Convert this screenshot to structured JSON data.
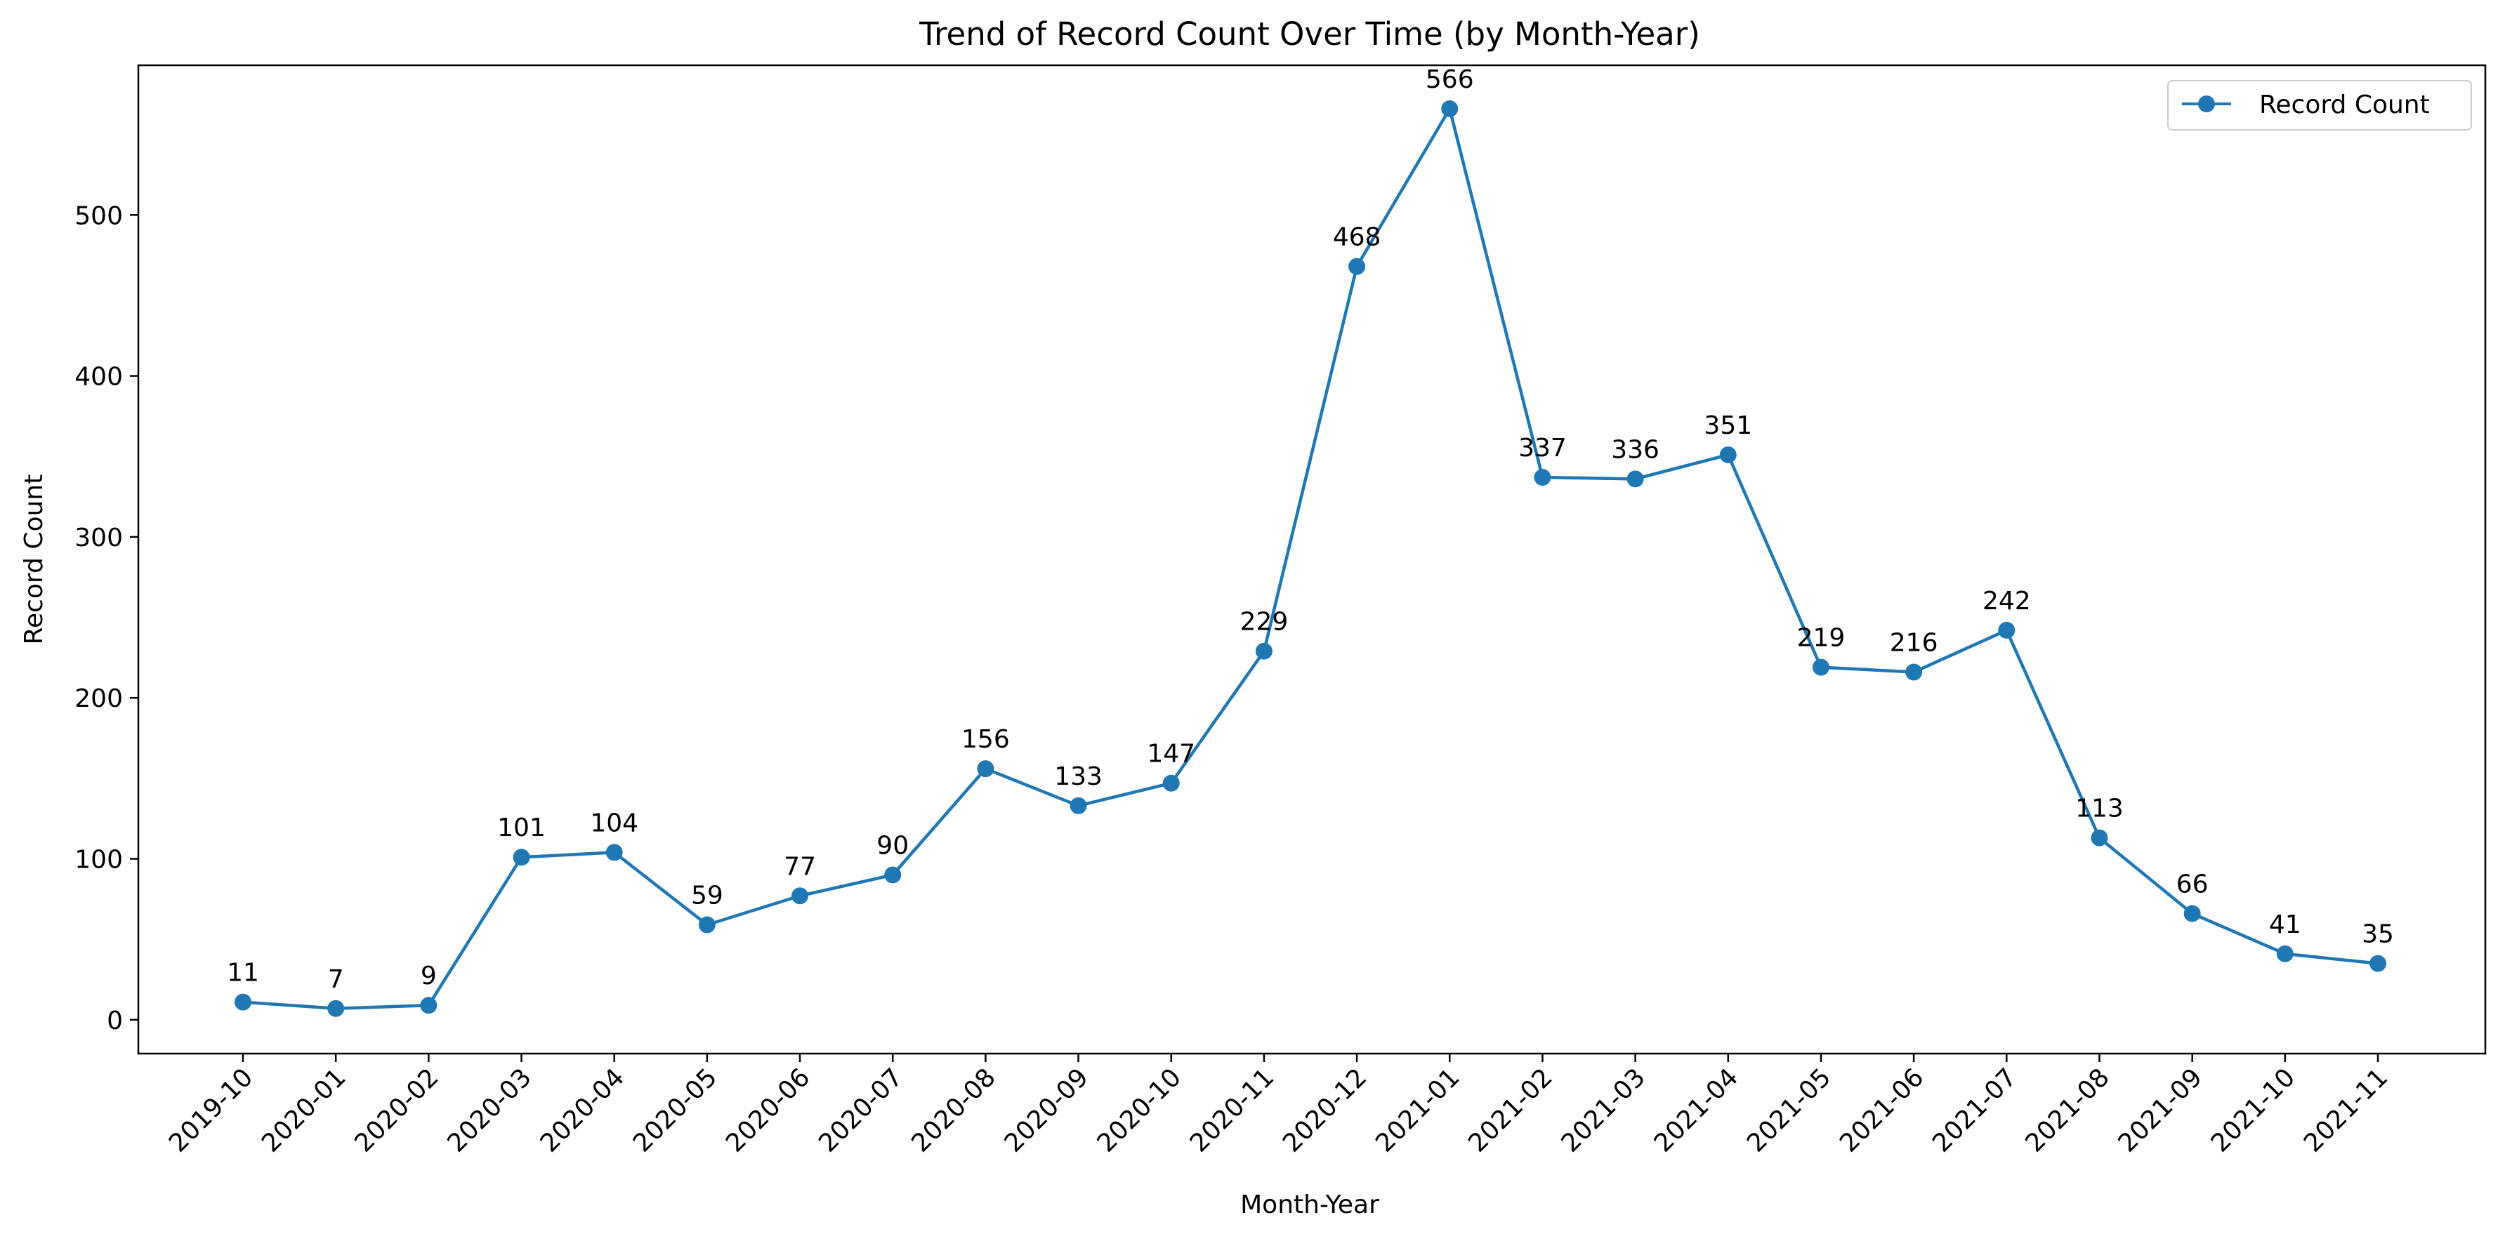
{
  "chart_data": {
    "type": "line",
    "title": "Trend of Record Count Over Time (by Month-Year)",
    "xlabel": "Month-Year",
    "ylabel": "Record Count",
    "categories": [
      "2019-10",
      "2020-01",
      "2020-02",
      "2020-03",
      "2020-04",
      "2020-05",
      "2020-06",
      "2020-07",
      "2020-08",
      "2020-09",
      "2020-10",
      "2020-11",
      "2020-12",
      "2021-01",
      "2021-02",
      "2021-03",
      "2021-04",
      "2021-05",
      "2021-06",
      "2021-07",
      "2021-08",
      "2021-09",
      "2021-10",
      "2021-11"
    ],
    "series": [
      {
        "name": "Record Count",
        "values": [
          11,
          7,
          9,
          101,
          104,
          59,
          77,
          90,
          156,
          133,
          147,
          229,
          468,
          566,
          337,
          336,
          351,
          219,
          216,
          242,
          113,
          66,
          41,
          35
        ]
      }
    ],
    "ylim": [
      -21,
      593
    ],
    "yticks": [
      0,
      100,
      200,
      300,
      400,
      500
    ],
    "grid": false,
    "legend": "top-right",
    "colors": {
      "line": "#1f77b4",
      "marker": "#1f77b4"
    }
  }
}
